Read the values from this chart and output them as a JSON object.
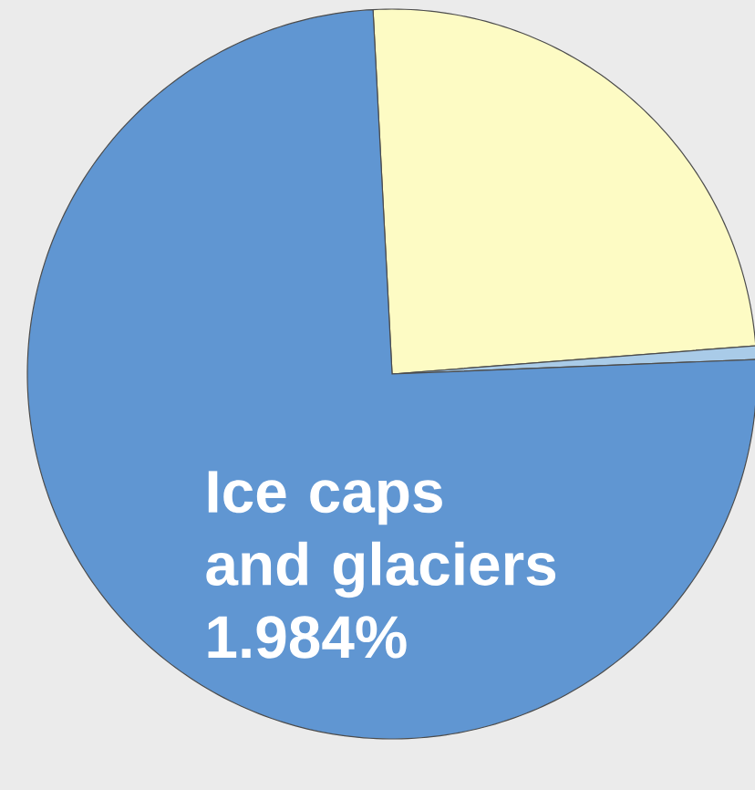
{
  "chart_data": {
    "type": "pie",
    "categories": [
      null,
      null,
      "Ice caps and glaciers 1.984%"
    ],
    "values": [
      24.6,
      0.6,
      74.8
    ],
    "colors": [
      "#fdfbc4",
      "#a9cbe8",
      "#6096d2"
    ]
  }
}
